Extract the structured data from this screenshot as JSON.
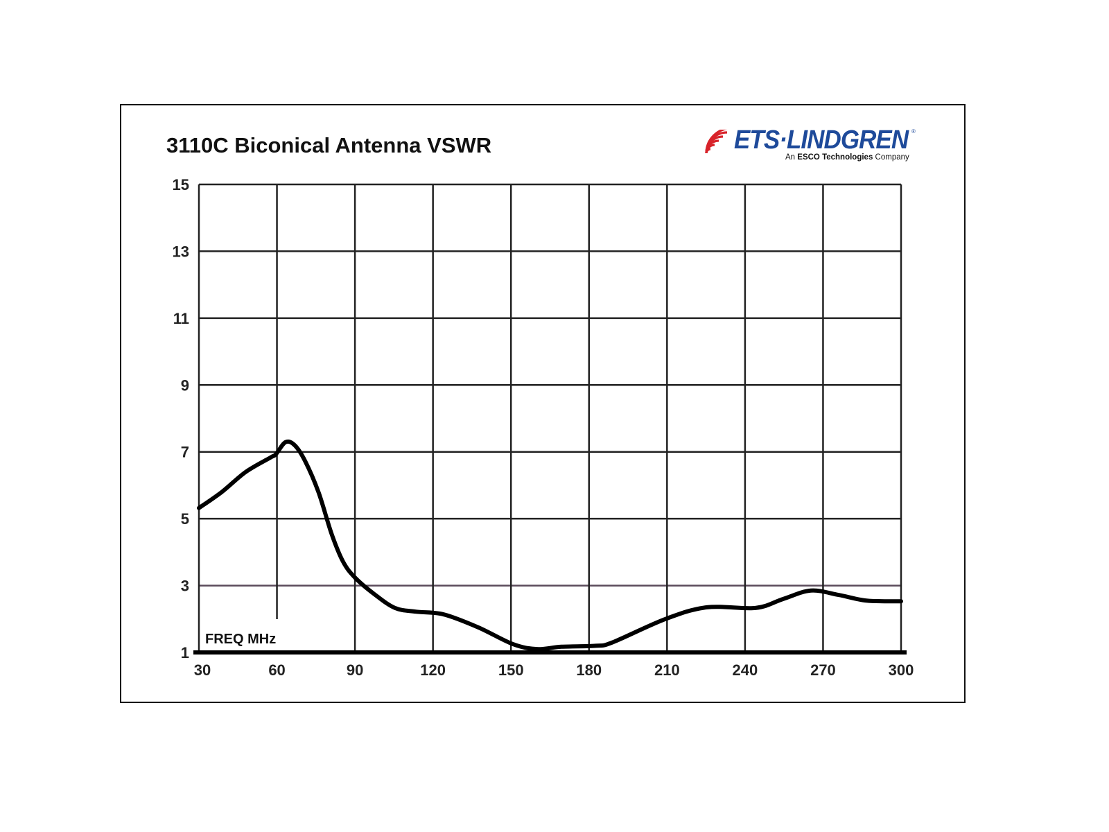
{
  "chart_data": {
    "type": "line",
    "title": "3110C Biconical Antenna VSWR",
    "xlabel": "FREQ MHz",
    "ylabel": "",
    "xlim": [
      30,
      300
    ],
    "ylim": [
      1,
      15
    ],
    "xticks": [
      "30",
      "60",
      "90",
      "120",
      "150",
      "180",
      "210",
      "240",
      "270",
      "300"
    ],
    "yticks": [
      "1",
      "3",
      "5",
      "7",
      "9",
      "11",
      "13",
      "15"
    ],
    "grid": true,
    "series": [
      {
        "name": "VSWR",
        "color": "#000000",
        "x": [
          30,
          38.8,
          48,
          57.5,
          59.6,
          63.3,
          66.8,
          70.8,
          76,
          81,
          85.4,
          90,
          97.5,
          105.4,
          113.4,
          124,
          137.4,
          150.7,
          160,
          169.4,
          182.7,
          189,
          209.4,
          225.4,
          244,
          254.7,
          265.3,
          276,
          286.7,
          300
        ],
        "y": [
          5.32,
          5.8,
          6.4,
          6.83,
          6.93,
          7.29,
          7.2,
          6.73,
          5.79,
          4.55,
          3.72,
          3.24,
          2.74,
          2.33,
          2.22,
          2.14,
          1.75,
          1.25,
          1.1,
          1.17,
          1.2,
          1.3,
          2.0,
          2.35,
          2.33,
          2.6,
          2.85,
          2.72,
          2.55,
          2.53
        ]
      }
    ]
  },
  "logo": {
    "name": "ETS·LINDGREN",
    "tagline_prefix": "An",
    "tagline_bold": "ESCO Technologies",
    "tagline_suffix": "Company"
  },
  "colors": {
    "logo_blue": "#1e4a9a",
    "logo_red": "#d8232a"
  }
}
